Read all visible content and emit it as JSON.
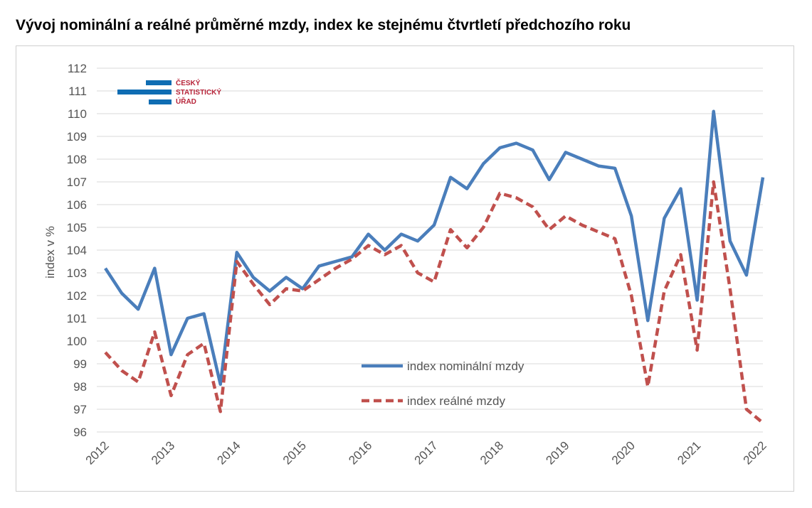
{
  "chart_title": "Vývoj nominální a reálné průměrné mzdy, index ke stejnému čtvrtletí předchozího roku",
  "logo": {
    "lines": [
      "ČESKÝ",
      "STATISTICKÝ",
      "ÚŘAD"
    ],
    "color": "#b8253a",
    "bar_color": "#0f6db3"
  },
  "chart_data": {
    "type": "line",
    "ylabel": "index v %",
    "xlabel": "",
    "ylim": [
      96,
      112
    ],
    "yticks": [
      96,
      97,
      98,
      99,
      100,
      101,
      102,
      103,
      104,
      105,
      106,
      107,
      108,
      109,
      110,
      111,
      112
    ],
    "xtick_labels": [
      "2012",
      "2013",
      "2014",
      "2015",
      "2016",
      "2017",
      "2018",
      "2019",
      "2020",
      "2021",
      "2022"
    ],
    "grid": true,
    "legend_position": "bottom-center",
    "x": [
      "2012Q1",
      "2012Q2",
      "2012Q3",
      "2012Q4",
      "2013Q1",
      "2013Q2",
      "2013Q3",
      "2013Q4",
      "2014Q1",
      "2014Q2",
      "2014Q3",
      "2014Q4",
      "2015Q1",
      "2015Q2",
      "2015Q3",
      "2015Q4",
      "2016Q1",
      "2016Q2",
      "2016Q3",
      "2016Q4",
      "2017Q1",
      "2017Q2",
      "2017Q3",
      "2017Q4",
      "2018Q1",
      "2018Q2",
      "2018Q3",
      "2018Q4",
      "2019Q1",
      "2019Q2",
      "2019Q3",
      "2019Q4",
      "2020Q1",
      "2020Q2",
      "2020Q3",
      "2020Q4",
      "2021Q1",
      "2021Q2",
      "2021Q3",
      "2021Q4",
      "2022Q1"
    ],
    "series": [
      {
        "name": "index nominální mzdy",
        "color": "#4a7ebb",
        "style": "solid",
        "values": [
          103.2,
          102.1,
          101.4,
          103.2,
          99.4,
          101.0,
          101.2,
          98.1,
          103.9,
          102.8,
          102.2,
          102.8,
          102.3,
          103.3,
          103.5,
          103.7,
          104.7,
          104.0,
          104.7,
          104.4,
          105.1,
          107.2,
          106.7,
          107.8,
          108.5,
          108.7,
          108.4,
          107.1,
          108.3,
          108.0,
          107.7,
          107.6,
          105.5,
          100.9,
          105.4,
          106.7,
          101.8,
          110.1,
          104.4,
          102.9,
          107.2
        ]
      },
      {
        "name": "index reálné mzdy",
        "color": "#c0504d",
        "style": "dashed",
        "values": [
          99.5,
          98.7,
          98.2,
          100.4,
          97.6,
          99.4,
          99.9,
          96.9,
          103.5,
          102.5,
          101.6,
          102.3,
          102.2,
          102.7,
          103.2,
          103.6,
          104.2,
          103.8,
          104.2,
          103.0,
          102.6,
          104.9,
          104.1,
          105.0,
          106.5,
          106.3,
          105.9,
          104.9,
          105.5,
          105.1,
          104.8,
          104.5,
          102.0,
          98.0,
          102.2,
          103.8,
          99.6,
          107.0,
          102.3,
          97.0,
          96.4
        ]
      }
    ]
  }
}
